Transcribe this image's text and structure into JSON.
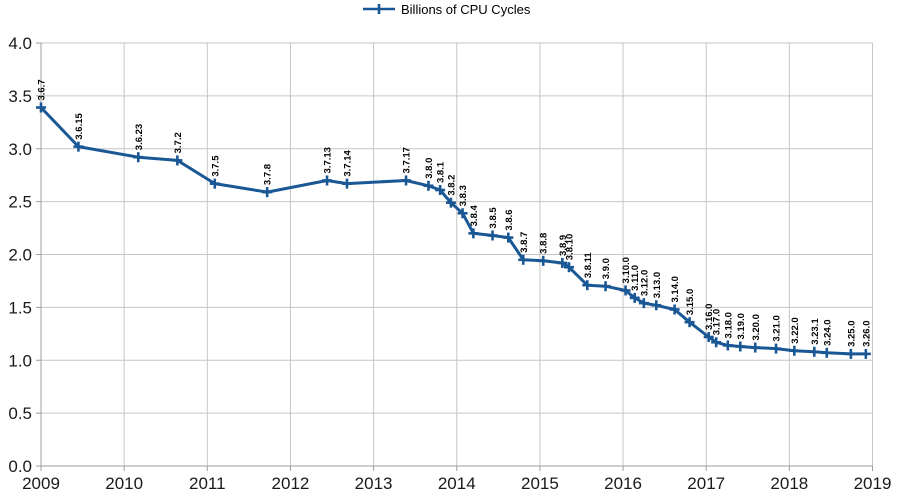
{
  "legend": {
    "label": "Billions of CPU Cycles"
  },
  "colors": {
    "series": "#1A5795",
    "grid": "#c6c6c6",
    "axis": "#9e9e9e",
    "tick_text": "#1a1a1a",
    "point_label_text": "#000000",
    "background": "#ffffff"
  },
  "chart_data": {
    "type": "line",
    "title": "",
    "legend_position": "top",
    "grid": true,
    "series_name": "Billions of CPU Cycles",
    "xlabel": "",
    "ylabel": "",
    "x_axis": {
      "min": 2009,
      "max": 2019,
      "ticks": [
        2009,
        2010,
        2011,
        2012,
        2013,
        2014,
        2015,
        2016,
        2017,
        2018,
        2019
      ]
    },
    "y_axis": {
      "min": 0.0,
      "max": 4.0,
      "step": 0.5,
      "tick_labels": [
        "0.0",
        "0.5",
        "1.0",
        "1.5",
        "2.0",
        "2.5",
        "3.0",
        "3.5",
        "4.0"
      ]
    },
    "points": [
      {
        "label": "3.6.7",
        "x": 2009.0,
        "y": 3.39
      },
      {
        "label": "3.6.15",
        "x": 2009.45,
        "y": 3.02
      },
      {
        "label": "3.6.23",
        "x": 2010.17,
        "y": 2.92
      },
      {
        "label": "3.7.2",
        "x": 2010.64,
        "y": 2.89
      },
      {
        "label": "3.7.5",
        "x": 2011.09,
        "y": 2.67
      },
      {
        "label": "3.7.8",
        "x": 2011.72,
        "y": 2.59
      },
      {
        "label": "3.7.13",
        "x": 2012.44,
        "y": 2.7
      },
      {
        "label": "3.7.14",
        "x": 2012.68,
        "y": 2.67
      },
      {
        "label": "3.7.17",
        "x": 2013.39,
        "y": 2.7
      },
      {
        "label": "3.8.0",
        "x": 2013.66,
        "y": 2.65
      },
      {
        "label": "3.8.1",
        "x": 2013.8,
        "y": 2.61
      },
      {
        "label": "3.8.2",
        "x": 2013.93,
        "y": 2.49
      },
      {
        "label": "3.8.3",
        "x": 2014.07,
        "y": 2.39
      },
      {
        "label": "3.8.4",
        "x": 2014.2,
        "y": 2.2
      },
      {
        "label": "3.8.5",
        "x": 2014.43,
        "y": 2.18
      },
      {
        "label": "3.8.6",
        "x": 2014.62,
        "y": 2.16
      },
      {
        "label": "3.8.7",
        "x": 2014.8,
        "y": 1.95
      },
      {
        "label": "3.8.8",
        "x": 2015.04,
        "y": 1.94
      },
      {
        "label": "3.8.9",
        "x": 2015.27,
        "y": 1.92
      },
      {
        "label": "3.8.10",
        "x": 2015.35,
        "y": 1.88
      },
      {
        "label": "3.8.11",
        "x": 2015.57,
        "y": 1.71
      },
      {
        "label": "3.9.0",
        "x": 2015.79,
        "y": 1.7
      },
      {
        "label": "3.10.0",
        "x": 2016.03,
        "y": 1.66
      },
      {
        "label": "3.11.0",
        "x": 2016.14,
        "y": 1.59
      },
      {
        "label": "3.12.0",
        "x": 2016.25,
        "y": 1.54
      },
      {
        "label": "3.13.0",
        "x": 2016.4,
        "y": 1.52
      },
      {
        "label": "3.14.0",
        "x": 2016.62,
        "y": 1.48
      },
      {
        "label": "3.15.0",
        "x": 2016.8,
        "y": 1.36
      },
      {
        "label": "3.16.0",
        "x": 2017.03,
        "y": 1.22
      },
      {
        "label": "3.17.0",
        "x": 2017.12,
        "y": 1.17
      },
      {
        "label": "3.18.0",
        "x": 2017.26,
        "y": 1.14
      },
      {
        "label": "3.19.0",
        "x": 2017.41,
        "y": 1.13
      },
      {
        "label": "3.20.0",
        "x": 2017.59,
        "y": 1.12
      },
      {
        "label": "3.21.0",
        "x": 2017.84,
        "y": 1.11
      },
      {
        "label": "3.22.0",
        "x": 2018.06,
        "y": 1.09
      },
      {
        "label": "3.23.1",
        "x": 2018.3,
        "y": 1.08
      },
      {
        "label": "3.24.0",
        "x": 2018.45,
        "y": 1.07
      },
      {
        "label": "3.25.0",
        "x": 2018.74,
        "y": 1.06
      },
      {
        "label": "3.26.0",
        "x": 2018.92,
        "y": 1.06
      }
    ]
  }
}
